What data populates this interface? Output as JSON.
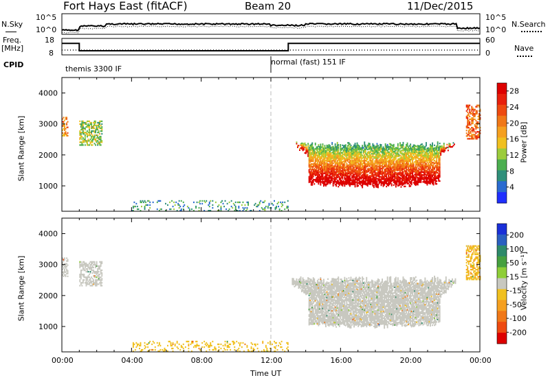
{
  "header": {
    "station": "Fort Hays East (fitACF)",
    "beam": "Beam 20",
    "date": "11/Dec/2015"
  },
  "summary": {
    "nsky_label": "N.Sky",
    "nsky_ticks": [
      "10^5",
      "10^0"
    ],
    "nsearch_label": "N.Search",
    "nsearch_ticks": [
      "10^5",
      "10^0"
    ],
    "freq_label": "Freq.",
    "freq_unit": "[MHz]",
    "freq_ticks": [
      "18",
      "8"
    ],
    "nave_label": "Nave",
    "nave_ticks": [
      "60",
      "0"
    ],
    "cpid_label": "CPID",
    "cpid_modes": [
      {
        "name": "themis 3300 IF",
        "start_hour": 0
      },
      {
        "name": "normal (fast) 151 IF",
        "start_hour": 12
      }
    ],
    "freq_series": [
      {
        "hour": 0,
        "mhz": 15
      },
      {
        "hour": 1.0,
        "mhz": 15
      },
      {
        "hour": 1.0,
        "mhz": 10.5
      },
      {
        "hour": 13.0,
        "mhz": 10.5
      },
      {
        "hour": 13.0,
        "mhz": 15
      },
      {
        "hour": 24,
        "mhz": 15
      }
    ]
  },
  "chart_data": [
    {
      "type": "heatmap",
      "ylabel": "Slant Range [km]",
      "xlabel": "Time UT",
      "xlim": [
        0,
        24
      ],
      "ylim": [
        180,
        4500
      ],
      "x_ticks": [
        "00:00",
        "04:00",
        "08:00",
        "12:00",
        "16:00",
        "20:00",
        "00:00"
      ],
      "y_ticks": [
        "1000",
        "2000",
        "3000",
        "4000"
      ],
      "colorbar": {
        "label": "Power [dB]",
        "ticks": [
          "4",
          "8",
          "12",
          "16",
          "20",
          "24",
          "28"
        ],
        "range": [
          0,
          30
        ],
        "colors": [
          "#1f2fff",
          "#2a6bd0",
          "#2f8f7a",
          "#4caf50",
          "#9ccc3c",
          "#f0c020",
          "#f5a020",
          "#f07818",
          "#ee4a10",
          "#e8200c",
          "#dd0000"
        ]
      },
      "features": [
        {
          "name": "echo_band",
          "t_start": 13.2,
          "t_end": 22.6,
          "r_low": 1000,
          "r_high": 2300,
          "power_db": 26
        },
        {
          "name": "edge_patch_start",
          "t_start": 0,
          "t_end": 0.3,
          "r_low": 2600,
          "r_high": 3200,
          "power_db": 20
        },
        {
          "name": "early_patch",
          "t_start": 1.0,
          "t_end": 2.3,
          "r_low": 2300,
          "r_high": 3100,
          "power_db": 12
        },
        {
          "name": "edge_patch_end",
          "t_start": 23.2,
          "t_end": 24,
          "r_low": 2500,
          "r_high": 3600,
          "power_db": 22
        },
        {
          "name": "near_range_noise",
          "t_start": 4,
          "t_end": 13,
          "r_low": 180,
          "r_high": 500,
          "power_db": 8
        }
      ]
    },
    {
      "type": "heatmap",
      "ylabel": "Slant Range [km]",
      "xlabel": "Time UT",
      "xlim": [
        0,
        24
      ],
      "ylim": [
        180,
        4500
      ],
      "x_ticks": [
        "00:00",
        "04:00",
        "08:00",
        "12:00",
        "16:00",
        "20:00",
        "00:00"
      ],
      "y_ticks": [
        "1000",
        "2000",
        "3000",
        "4000"
      ],
      "colorbar": {
        "label": "Velocity [m s⁻¹]",
        "ticks": [
          "200",
          "100",
          "50",
          "15",
          "-15",
          "-50",
          "-100",
          "-200"
        ],
        "range": [
          -250,
          250
        ],
        "colors": [
          "#1a2fd8",
          "#2a5fc0",
          "#2e8a6a",
          "#46a040",
          "#8fce38",
          "#c8c8c0",
          "#f0c020",
          "#f5a020",
          "#f07818",
          "#ee4a10",
          "#dd0000"
        ]
      },
      "features": [
        {
          "name": "echo_band",
          "t_start": 13.2,
          "t_end": 22.6,
          "r_low": 1000,
          "r_high": 2500,
          "velocity": 0
        },
        {
          "name": "edge_patch_start",
          "t_start": 0,
          "t_end": 0.3,
          "r_low": 2600,
          "r_high": 3200,
          "velocity": 0
        },
        {
          "name": "early_patch",
          "t_start": 1.0,
          "t_end": 2.3,
          "r_low": 2300,
          "r_high": 3100,
          "velocity": 0
        },
        {
          "name": "edge_patch_end",
          "t_start": 23.2,
          "t_end": 24,
          "r_low": 2500,
          "r_high": 3600,
          "velocity": -60
        },
        {
          "name": "near_range_noise",
          "t_start": 4,
          "t_end": 13,
          "r_low": 180,
          "r_high": 500,
          "velocity": -40
        }
      ]
    }
  ]
}
